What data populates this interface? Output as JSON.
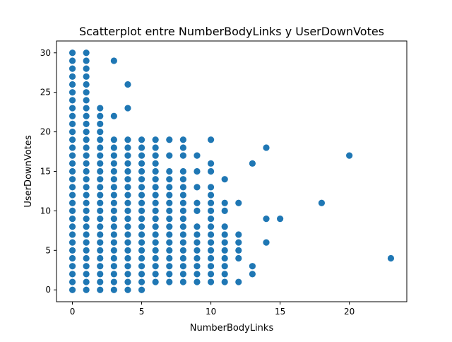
{
  "chart_data": {
    "type": "scatter",
    "title": "Scatterplot entre NumberBodyLinks y UserDownVotes",
    "xlabel": "NumberBodyLinks",
    "ylabel": "UserDownVotes",
    "xlim": [
      -1.15,
      24.15
    ],
    "ylim": [
      -1.5,
      31.5
    ],
    "xticks": [
      0,
      5,
      10,
      15,
      20
    ],
    "yticks": [
      0,
      5,
      10,
      15,
      20,
      25,
      30
    ],
    "grid": false,
    "color": "#1f77b4",
    "points": [
      [
        0,
        0
      ],
      [
        0,
        1
      ],
      [
        0,
        2
      ],
      [
        0,
        3
      ],
      [
        0,
        4
      ],
      [
        0,
        5
      ],
      [
        0,
        6
      ],
      [
        0,
        7
      ],
      [
        0,
        8
      ],
      [
        0,
        9
      ],
      [
        0,
        10
      ],
      [
        0,
        11
      ],
      [
        0,
        12
      ],
      [
        0,
        13
      ],
      [
        0,
        14
      ],
      [
        0,
        15
      ],
      [
        0,
        16
      ],
      [
        0,
        17
      ],
      [
        0,
        18
      ],
      [
        0,
        19
      ],
      [
        0,
        20
      ],
      [
        0,
        21
      ],
      [
        0,
        22
      ],
      [
        0,
        23
      ],
      [
        0,
        24
      ],
      [
        0,
        25
      ],
      [
        0,
        26
      ],
      [
        0,
        27
      ],
      [
        0,
        28
      ],
      [
        0,
        29
      ],
      [
        0,
        30
      ],
      [
        1,
        0
      ],
      [
        1,
        1
      ],
      [
        1,
        2
      ],
      [
        1,
        3
      ],
      [
        1,
        4
      ],
      [
        1,
        5
      ],
      [
        1,
        6
      ],
      [
        1,
        7
      ],
      [
        1,
        8
      ],
      [
        1,
        9
      ],
      [
        1,
        10
      ],
      [
        1,
        11
      ],
      [
        1,
        12
      ],
      [
        1,
        13
      ],
      [
        1,
        14
      ],
      [
        1,
        15
      ],
      [
        1,
        16
      ],
      [
        1,
        17
      ],
      [
        1,
        18
      ],
      [
        1,
        19
      ],
      [
        1,
        20
      ],
      [
        1,
        21
      ],
      [
        1,
        22
      ],
      [
        1,
        23
      ],
      [
        1,
        24
      ],
      [
        1,
        25
      ],
      [
        1,
        26
      ],
      [
        1,
        27
      ],
      [
        1,
        28
      ],
      [
        1,
        29
      ],
      [
        1,
        30
      ],
      [
        2,
        0
      ],
      [
        2,
        1
      ],
      [
        2,
        2
      ],
      [
        2,
        3
      ],
      [
        2,
        4
      ],
      [
        2,
        5
      ],
      [
        2,
        6
      ],
      [
        2,
        7
      ],
      [
        2,
        8
      ],
      [
        2,
        9
      ],
      [
        2,
        10
      ],
      [
        2,
        11
      ],
      [
        2,
        12
      ],
      [
        2,
        13
      ],
      [
        2,
        14
      ],
      [
        2,
        15
      ],
      [
        2,
        16
      ],
      [
        2,
        17
      ],
      [
        2,
        18
      ],
      [
        2,
        19
      ],
      [
        2,
        20
      ],
      [
        2,
        21
      ],
      [
        2,
        22
      ],
      [
        2,
        23
      ],
      [
        3,
        0
      ],
      [
        3,
        1
      ],
      [
        3,
        2
      ],
      [
        3,
        3
      ],
      [
        3,
        4
      ],
      [
        3,
        5
      ],
      [
        3,
        6
      ],
      [
        3,
        7
      ],
      [
        3,
        8
      ],
      [
        3,
        9
      ],
      [
        3,
        10
      ],
      [
        3,
        11
      ],
      [
        3,
        12
      ],
      [
        3,
        13
      ],
      [
        3,
        14
      ],
      [
        3,
        15
      ],
      [
        3,
        16
      ],
      [
        3,
        17
      ],
      [
        3,
        18
      ],
      [
        3,
        19
      ],
      [
        3,
        22
      ],
      [
        3,
        29
      ],
      [
        4,
        0
      ],
      [
        4,
        1
      ],
      [
        4,
        2
      ],
      [
        4,
        3
      ],
      [
        4,
        4
      ],
      [
        4,
        5
      ],
      [
        4,
        6
      ],
      [
        4,
        7
      ],
      [
        4,
        8
      ],
      [
        4,
        9
      ],
      [
        4,
        10
      ],
      [
        4,
        11
      ],
      [
        4,
        12
      ],
      [
        4,
        13
      ],
      [
        4,
        14
      ],
      [
        4,
        15
      ],
      [
        4,
        16
      ],
      [
        4,
        17
      ],
      [
        4,
        18
      ],
      [
        4,
        19
      ],
      [
        4,
        23
      ],
      [
        4,
        26
      ],
      [
        5,
        0
      ],
      [
        5,
        1
      ],
      [
        5,
        2
      ],
      [
        5,
        3
      ],
      [
        5,
        4
      ],
      [
        5,
        5
      ],
      [
        5,
        6
      ],
      [
        5,
        7
      ],
      [
        5,
        8
      ],
      [
        5,
        9
      ],
      [
        5,
        10
      ],
      [
        5,
        11
      ],
      [
        5,
        12
      ],
      [
        5,
        13
      ],
      [
        5,
        14
      ],
      [
        5,
        15
      ],
      [
        5,
        16
      ],
      [
        5,
        17
      ],
      [
        5,
        18
      ],
      [
        5,
        19
      ],
      [
        6,
        1
      ],
      [
        6,
        2
      ],
      [
        6,
        3
      ],
      [
        6,
        4
      ],
      [
        6,
        5
      ],
      [
        6,
        6
      ],
      [
        6,
        7
      ],
      [
        6,
        8
      ],
      [
        6,
        9
      ],
      [
        6,
        10
      ],
      [
        6,
        11
      ],
      [
        6,
        12
      ],
      [
        6,
        13
      ],
      [
        6,
        14
      ],
      [
        6,
        15
      ],
      [
        6,
        16
      ],
      [
        6,
        17
      ],
      [
        6,
        18
      ],
      [
        6,
        19
      ],
      [
        7,
        1
      ],
      [
        7,
        2
      ],
      [
        7,
        3
      ],
      [
        7,
        4
      ],
      [
        7,
        5
      ],
      [
        7,
        6
      ],
      [
        7,
        7
      ],
      [
        7,
        8
      ],
      [
        7,
        9
      ],
      [
        7,
        10
      ],
      [
        7,
        11
      ],
      [
        7,
        12
      ],
      [
        7,
        13
      ],
      [
        7,
        14
      ],
      [
        7,
        15
      ],
      [
        7,
        17
      ],
      [
        7,
        19
      ],
      [
        8,
        1
      ],
      [
        8,
        2
      ],
      [
        8,
        3
      ],
      [
        8,
        4
      ],
      [
        8,
        5
      ],
      [
        8,
        6
      ],
      [
        8,
        7
      ],
      [
        8,
        8
      ],
      [
        8,
        9
      ],
      [
        8,
        10
      ],
      [
        8,
        11
      ],
      [
        8,
        12
      ],
      [
        8,
        13
      ],
      [
        8,
        14
      ],
      [
        8,
        15
      ],
      [
        8,
        17
      ],
      [
        8,
        18
      ],
      [
        8,
        19
      ],
      [
        9,
        1
      ],
      [
        9,
        2
      ],
      [
        9,
        3
      ],
      [
        9,
        4
      ],
      [
        9,
        5
      ],
      [
        9,
        6
      ],
      [
        9,
        7
      ],
      [
        9,
        8
      ],
      [
        9,
        10
      ],
      [
        9,
        11
      ],
      [
        9,
        13
      ],
      [
        9,
        15
      ],
      [
        9,
        17
      ],
      [
        10,
        1
      ],
      [
        10,
        2
      ],
      [
        10,
        3
      ],
      [
        10,
        4
      ],
      [
        10,
        5
      ],
      [
        10,
        6
      ],
      [
        10,
        7
      ],
      [
        10,
        8
      ],
      [
        10,
        9
      ],
      [
        10,
        10
      ],
      [
        10,
        11
      ],
      [
        10,
        12
      ],
      [
        10,
        13
      ],
      [
        10,
        15
      ],
      [
        10,
        16
      ],
      [
        10,
        19
      ],
      [
        11,
        1
      ],
      [
        11,
        2
      ],
      [
        11,
        3
      ],
      [
        11,
        4
      ],
      [
        11,
        5
      ],
      [
        11,
        6
      ],
      [
        11,
        7
      ],
      [
        11,
        8
      ],
      [
        11,
        10
      ],
      [
        11,
        11
      ],
      [
        11,
        14
      ],
      [
        12,
        1
      ],
      [
        12,
        4
      ],
      [
        12,
        5
      ],
      [
        12,
        6
      ],
      [
        12,
        7
      ],
      [
        12,
        11
      ],
      [
        13,
        2
      ],
      [
        13,
        3
      ],
      [
        13,
        16
      ],
      [
        14,
        6
      ],
      [
        14,
        9
      ],
      [
        14,
        18
      ],
      [
        15,
        9
      ],
      [
        18,
        11
      ],
      [
        20,
        17
      ],
      [
        23,
        4
      ]
    ]
  }
}
